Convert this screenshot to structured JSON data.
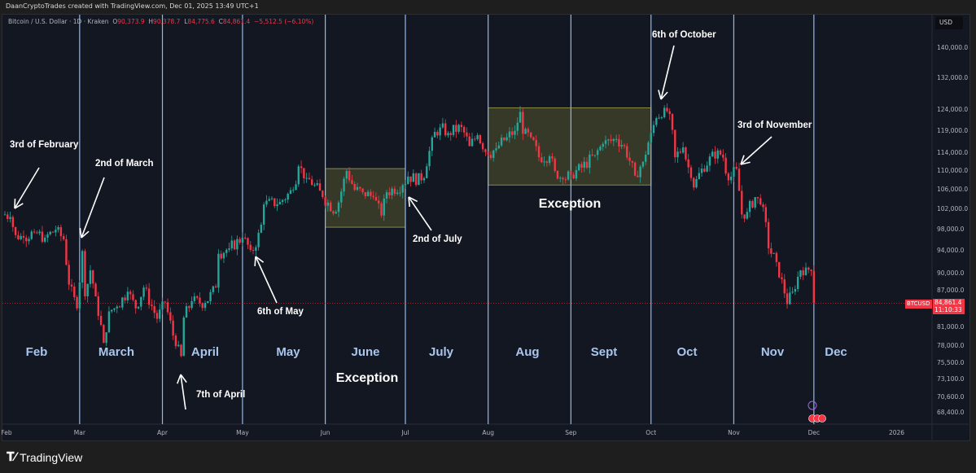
{
  "header": {
    "credit": "DaanCryptoTrades created with TradingView.com, Dec 01, 2025 13:49 UTC+1"
  },
  "legend": {
    "symbol": "Bitcoin / U.S. Dollar · 1D · Kraken",
    "o_label": "O",
    "o": "90,373.9",
    "h_label": "H",
    "h": "90,378.7",
    "l_label": "L",
    "l": "84,775.6",
    "c_label": "C",
    "c": "84,861.4",
    "change": "−5,512.5 (−6.10%)"
  },
  "price_axis": {
    "currency": "USD",
    "ticks": [
      "140,000.0",
      "132,000.0",
      "124,000.0",
      "119,000.0",
      "114,000.0",
      "110,000.0",
      "106,000.0",
      "102,000.0",
      "98,000.0",
      "94,000.0",
      "90,000.0",
      "87,000.0",
      "81,000.0",
      "78,000.0",
      "75,500.0",
      "73,100.0",
      "70,600.0",
      "68,400.0"
    ]
  },
  "current": {
    "symbol": "BTCUSD",
    "price": "84,861.4",
    "countdown": "11:10:33",
    "color": "#f23645"
  },
  "time_axis": {
    "ticks": [
      "Feb",
      "Mar",
      "Apr",
      "May",
      "Jun",
      "Jul",
      "Aug",
      "Sep",
      "Oct",
      "Nov",
      "Dec",
      "2026"
    ]
  },
  "month_labels": [
    "Feb",
    "March",
    "April",
    "May",
    "June",
    "July",
    "Aug",
    "Sept",
    "Oct",
    "Nov",
    "Dec"
  ],
  "annotations": [
    "3rd of February",
    "2nd of March",
    "7th of April",
    "6th of May",
    "2nd of July",
    "6th of October",
    "3rd of November"
  ],
  "exceptions": [
    "Exception",
    "Exception"
  ],
  "brand": "TradingView",
  "colors": {
    "up": "#26a69a",
    "down": "#f23645",
    "month_line": "#8fb8f0",
    "box": "#5a5a2a"
  },
  "chart_data": {
    "type": "candlestick",
    "scale": "log",
    "ylim": [
      66500,
      146000
    ],
    "xlim": [
      "2025-01-30",
      "2026-01-15"
    ],
    "month_separators": [
      "2025-03-01",
      "2025-04-01",
      "2025-05-01",
      "2025-06-01",
      "2025-07-01",
      "2025-08-01",
      "2025-09-01",
      "2025-10-01",
      "2025-11-01",
      "2025-12-01"
    ],
    "boxes": [
      {
        "from": "2025-06-01",
        "to": "2025-07-01",
        "low": 98500,
        "high": 110500
      },
      {
        "from": "2025-08-01",
        "to": "2025-10-01",
        "low": 107000,
        "high": 124500
      }
    ],
    "closes": [
      [
        "2025-02-01",
        101000
      ],
      [
        "2025-02-03",
        100500
      ],
      [
        "2025-02-05",
        97000
      ],
      [
        "2025-02-08",
        96500
      ],
      [
        "2025-02-12",
        97500
      ],
      [
        "2025-02-16",
        96500
      ],
      [
        "2025-02-20",
        98000
      ],
      [
        "2025-02-23",
        96200
      ],
      [
        "2025-02-25",
        88000
      ],
      [
        "2025-02-28",
        84000
      ],
      [
        "2025-03-02",
        94000
      ],
      [
        "2025-03-03",
        86000
      ],
      [
        "2025-03-05",
        90500
      ],
      [
        "2025-03-07",
        86000
      ],
      [
        "2025-03-10",
        78500
      ],
      [
        "2025-03-12",
        83500
      ],
      [
        "2025-03-15",
        84300
      ],
      [
        "2025-03-19",
        86800
      ],
      [
        "2025-03-22",
        84000
      ],
      [
        "2025-03-25",
        87500
      ],
      [
        "2025-03-30",
        82300
      ],
      [
        "2025-04-02",
        85000
      ],
      [
        "2025-04-06",
        78000
      ],
      [
        "2025-04-08",
        76500
      ],
      [
        "2025-04-09",
        82500
      ],
      [
        "2025-04-12",
        85200
      ],
      [
        "2025-04-17",
        84900
      ],
      [
        "2025-04-21",
        87500
      ],
      [
        "2025-04-22",
        93500
      ],
      [
        "2025-04-26",
        94500
      ],
      [
        "2025-05-01",
        96500
      ],
      [
        "2025-05-04",
        94200
      ],
      [
        "2025-05-06",
        94700
      ],
      [
        "2025-05-08",
        99000
      ],
      [
        "2025-05-09",
        103000
      ],
      [
        "2025-05-15",
        103500
      ],
      [
        "2025-05-20",
        106000
      ],
      [
        "2025-05-22",
        111000
      ],
      [
        "2025-05-25",
        108500
      ],
      [
        "2025-05-28",
        107000
      ],
      [
        "2025-05-31",
        104500
      ],
      [
        "2025-06-05",
        101500
      ],
      [
        "2025-06-09",
        110000
      ],
      [
        "2025-06-12",
        106000
      ],
      [
        "2025-06-15",
        105500
      ],
      [
        "2025-06-19",
        104500
      ],
      [
        "2025-06-22",
        100800
      ],
      [
        "2025-06-24",
        105500
      ],
      [
        "2025-06-30",
        107000
      ],
      [
        "2025-07-02",
        108800
      ],
      [
        "2025-07-07",
        108000
      ],
      [
        "2025-07-09",
        111000
      ],
      [
        "2025-07-11",
        117500
      ],
      [
        "2025-07-14",
        119800
      ],
      [
        "2025-07-17",
        118500
      ],
      [
        "2025-07-22",
        119900
      ],
      [
        "2025-07-25",
        115500
      ],
      [
        "2025-07-28",
        118000
      ],
      [
        "2025-08-01",
        113500
      ],
      [
        "2025-08-04",
        115000
      ],
      [
        "2025-08-08",
        117500
      ],
      [
        "2025-08-11",
        119000
      ],
      [
        "2025-08-13",
        123500
      ],
      [
        "2025-08-14",
        118300
      ],
      [
        "2025-08-17",
        117500
      ],
      [
        "2025-08-20",
        113000
      ],
      [
        "2025-08-24",
        113200
      ],
      [
        "2025-08-26",
        110000
      ],
      [
        "2025-08-29",
        108200
      ],
      [
        "2025-09-01",
        109200
      ],
      [
        "2025-09-05",
        110700
      ],
      [
        "2025-09-10",
        113500
      ],
      [
        "2025-09-13",
        116000
      ],
      [
        "2025-09-18",
        117100
      ],
      [
        "2025-09-21",
        115500
      ],
      [
        "2025-09-25",
        109000
      ],
      [
        "2025-09-28",
        112000
      ],
      [
        "2025-10-01",
        118500
      ],
      [
        "2025-10-03",
        122000
      ],
      [
        "2025-10-06",
        124500
      ],
      [
        "2025-10-08",
        123000
      ],
      [
        "2025-10-10",
        113000
      ],
      [
        "2025-10-13",
        115200
      ],
      [
        "2025-10-16",
        108500
      ],
      [
        "2025-10-17",
        106500
      ],
      [
        "2025-10-20",
        110500
      ],
      [
        "2025-10-26",
        114500
      ],
      [
        "2025-10-28",
        112900
      ],
      [
        "2025-10-30",
        108000
      ],
      [
        "2025-11-02",
        110500
      ],
      [
        "2025-11-04",
        101000
      ],
      [
        "2025-11-06",
        101500
      ],
      [
        "2025-11-09",
        104500
      ],
      [
        "2025-11-11",
        103000
      ],
      [
        "2025-11-13",
        99500
      ],
      [
        "2025-11-14",
        94500
      ],
      [
        "2025-11-17",
        92000
      ],
      [
        "2025-11-20",
        86500
      ],
      [
        "2025-11-21",
        84700
      ],
      [
        "2025-11-23",
        86800
      ],
      [
        "2025-11-26",
        90500
      ],
      [
        "2025-11-28",
        91000
      ],
      [
        "2025-11-30",
        90400
      ],
      [
        "2025-12-01",
        84861
      ]
    ]
  }
}
